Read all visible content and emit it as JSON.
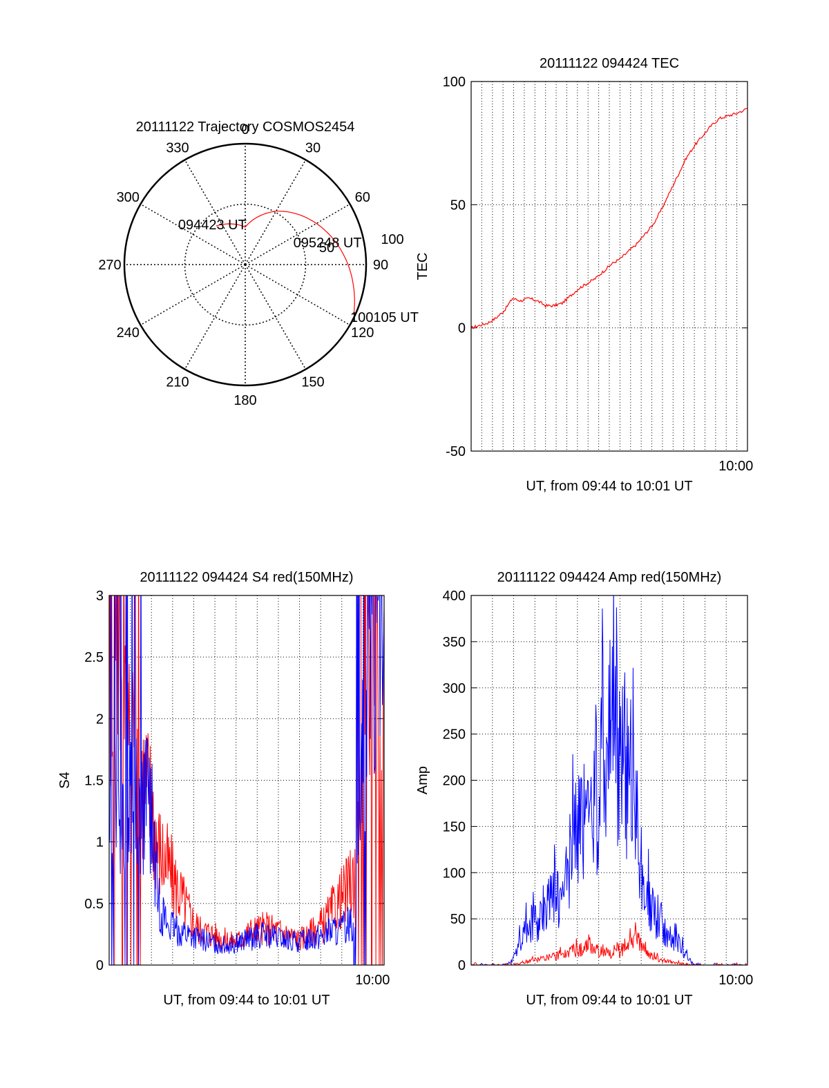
{
  "colors": {
    "red": "#ff0000",
    "blue": "#0000ff",
    "axis": "#000000",
    "grid": "#000000"
  },
  "chart_data": [
    {
      "type": "polar",
      "title": "20111122 Trajectory COSMOS2454",
      "angle_labels": [
        "0",
        "30",
        "60",
        "90",
        "120",
        "150",
        "180",
        "210",
        "240",
        "270",
        "300",
        "330"
      ],
      "radial_labels": [
        "50",
        "100"
      ],
      "grid": true,
      "series": [
        {
          "color": "red",
          "points": [
            [
              323,
              40
            ],
            [
              0,
              31
            ],
            [
              30,
              51
            ],
            [
              60,
              68
            ],
            [
              90,
              85
            ],
            [
              115,
              99
            ]
          ]
        }
      ],
      "annotations": [
        {
          "text": "094423 UT",
          "azimuth": 323,
          "elevation": 40
        },
        {
          "text": "095248 UT",
          "azimuth": 68,
          "elevation": 46
        },
        {
          "text": "100105 UT",
          "azimuth": 115,
          "elevation": 99
        }
      ]
    },
    {
      "type": "line",
      "title": "20111122 094424 TEC",
      "xlabel": "UT, from 09:44 to 10:01 UT",
      "ylabel": "TEC",
      "x_tick_labels": [
        "10:00"
      ],
      "x_tick_values": [
        16
      ],
      "y_ticks": [
        "-50",
        "0",
        "50",
        "100"
      ],
      "xlim": [
        0,
        16.7
      ],
      "ylim": [
        -50,
        100
      ],
      "grid": true,
      "series": [
        {
          "color": "red",
          "x": [
            0,
            0.5,
            1,
            1.5,
            2,
            2.5,
            3,
            3.5,
            4,
            4.5,
            5,
            5.5,
            6,
            6.5,
            7,
            7.5,
            8,
            8.5,
            9,
            9.5,
            10,
            10.5,
            11,
            11.5,
            12,
            12.5,
            13,
            13.5,
            14,
            14.5,
            15,
            15.5,
            16,
            16.7
          ],
          "y": [
            0,
            1,
            2,
            4,
            7,
            12,
            11,
            12,
            11,
            9,
            9,
            10,
            13,
            16,
            18,
            20,
            23,
            26,
            28,
            31,
            34,
            38,
            42,
            48,
            55,
            62,
            69,
            74,
            78,
            82,
            85,
            86,
            87,
            89
          ]
        }
      ]
    },
    {
      "type": "line",
      "title": "20111122 094424 S4 red(150MHz)",
      "xlabel": "UT, from 09:44 to 10:01 UT",
      "ylabel": "S4",
      "x_tick_labels": [
        "10:00"
      ],
      "x_tick_values": [
        16
      ],
      "y_ticks": [
        "0",
        "0.5",
        "1",
        "1.5",
        "2",
        "2.5",
        "3"
      ],
      "xlim": [
        0,
        16.7
      ],
      "ylim": [
        0,
        3
      ],
      "grid": true,
      "series": [
        {
          "color": "red",
          "x": [
            0,
            0.5,
            1,
            1.5,
            2,
            2.5,
            3,
            3.5,
            4,
            4.5,
            5,
            5.5,
            6,
            6.5,
            7,
            7.5,
            8,
            8.5,
            9,
            9.5,
            10,
            10.5,
            11,
            11.5,
            12,
            12.5,
            13,
            13.5,
            14,
            14.5,
            15,
            15.5,
            16,
            16.7
          ],
          "y": [
            2.4,
            2.8,
            2.6,
            2.2,
            1.6,
            1.4,
            1.0,
            0.85,
            0.7,
            0.55,
            0.4,
            0.3,
            0.28,
            0.25,
            0.22,
            0.2,
            0.22,
            0.28,
            0.3,
            0.32,
            0.3,
            0.28,
            0.25,
            0.22,
            0.25,
            0.3,
            0.35,
            0.45,
            0.55,
            0.65,
            0.8,
            2.0,
            2.8,
            2.9
          ]
        },
        {
          "color": "blue",
          "x": [
            0,
            0.5,
            1,
            1.5,
            2,
            2.5,
            3,
            3.5,
            4,
            4.5,
            5,
            5.5,
            6,
            6.5,
            7,
            7.5,
            8,
            8.5,
            9,
            9.5,
            10,
            10.5,
            11,
            11.5,
            12,
            12.5,
            13,
            13.5,
            14,
            14.5,
            15,
            15.5,
            16,
            16.7
          ],
          "y": [
            1.3,
            1.4,
            1.5,
            1.45,
            1.4,
            1.35,
            0.55,
            0.35,
            0.3,
            0.28,
            0.25,
            0.22,
            0.2,
            0.18,
            0.17,
            0.18,
            0.2,
            0.22,
            0.25,
            0.25,
            0.23,
            0.22,
            0.2,
            0.2,
            0.22,
            0.25,
            0.25,
            0.3,
            0.28,
            0.35,
            0.4,
            2.0,
            2.8,
            2.9
          ]
        }
      ]
    },
    {
      "type": "line",
      "title": "20111122 094424 Amp red(150MHz)",
      "xlabel": "UT, from 09:44 to 10:01 UT",
      "ylabel": "Amp",
      "x_tick_labels": [
        "10:00"
      ],
      "x_tick_values": [
        16
      ],
      "y_ticks": [
        "0",
        "50",
        "100",
        "150",
        "200",
        "250",
        "300",
        "350",
        "400"
      ],
      "xlim": [
        0,
        16.7
      ],
      "ylim": [
        0,
        400
      ],
      "grid": true,
      "series": [
        {
          "color": "blue",
          "x": [
            0,
            1,
            2,
            2.5,
            3,
            3.5,
            4,
            4.5,
            5,
            5.5,
            6,
            6.5,
            7,
            7.5,
            8,
            8.5,
            9,
            9.5,
            10,
            10.5,
            11,
            11.5,
            12,
            12.5,
            13,
            13.5,
            14,
            15,
            16,
            16.7
          ],
          "y": [
            0,
            0,
            0,
            5,
            30,
            40,
            50,
            60,
            80,
            70,
            130,
            150,
            160,
            180,
            220,
            260,
            220,
            230,
            160,
            80,
            60,
            40,
            30,
            25,
            10,
            0,
            0,
            0,
            0,
            0
          ]
        },
        {
          "color": "red",
          "x": [
            0,
            1,
            2,
            2.5,
            3,
            3.5,
            4,
            4.5,
            5,
            5.5,
            6,
            6.5,
            7,
            7.5,
            8,
            8.5,
            9,
            9.5,
            10,
            10.5,
            11,
            11.5,
            12,
            12.5,
            13,
            13.5,
            14,
            15,
            16,
            16.7
          ],
          "y": [
            0,
            0,
            0,
            0,
            2,
            4,
            6,
            8,
            10,
            12,
            15,
            18,
            20,
            18,
            15,
            12,
            15,
            25,
            30,
            15,
            8,
            6,
            4,
            2,
            0,
            0,
            0,
            0,
            0,
            0
          ]
        }
      ]
    }
  ]
}
